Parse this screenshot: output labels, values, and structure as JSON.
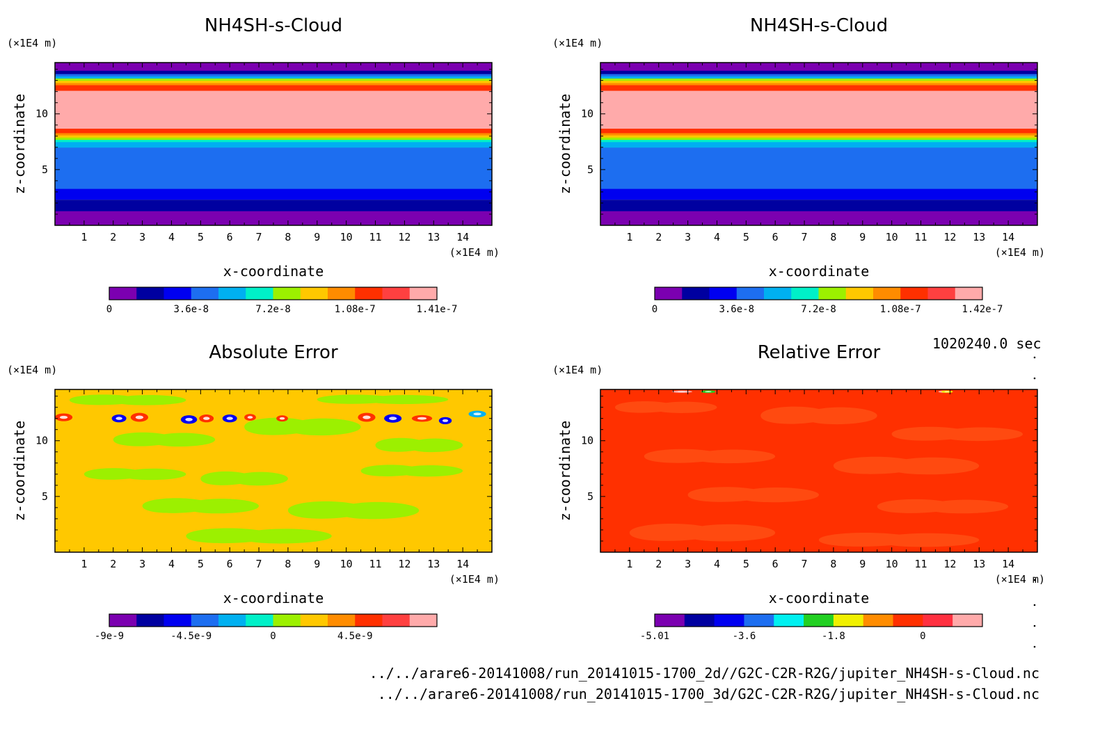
{
  "time_label": "1020240.0 sec",
  "footer": {
    "line1": "../../arare6-20141008/run_20141015-1700_2d//G2C-C2R-R2G/jupiter_NH4SH-s-Cloud.nc",
    "line2": "../../arare6-20141008/run_20141015-1700_3d/G2C-C2R-R2G/jupiter_NH4SH-s-Cloud.nc"
  },
  "chart_data": [
    {
      "type": "heatmap",
      "title": "NH4SH-s-Cloud",
      "xlabel": "x-coordinate",
      "ylabel": "z-coordinate",
      "x_unit": "(×1E4 m)",
      "y_unit": "(×1E4 m)",
      "xlim": [
        0,
        15
      ],
      "ylim": [
        0,
        14.6
      ],
      "x_ticks": [
        1,
        2,
        3,
        4,
        5,
        6,
        7,
        8,
        9,
        10,
        11,
        12,
        13,
        14
      ],
      "y_ticks": [
        5,
        10
      ],
      "colorbar": {
        "ticks": [
          "0",
          "3.6e-8",
          "7.2e-8",
          "1.08e-7",
          "1.41e-7"
        ],
        "colors": [
          "#7b00b0",
          "#0000a0",
          "#0000f0",
          "#1d6ef0",
          "#00b0f0",
          "#00f0c8",
          "#9cf000",
          "#ffc800",
          "#ff8c00",
          "#ff3000",
          "#ff4040",
          "#ffaaaa"
        ]
      },
      "layers": [
        {
          "z0": 0.0,
          "z1": 1.3,
          "color": "#7b00b0"
        },
        {
          "z0": 1.3,
          "z1": 2.3,
          "color": "#0000a0"
        },
        {
          "z0": 2.3,
          "z1": 3.3,
          "color": "#0000f0",
          "bulge": 0.8
        },
        {
          "z0": 3.3,
          "z1": 7.0,
          "color": "#1d6ef0"
        },
        {
          "z0": 7.0,
          "z1": 7.5,
          "color": "#00b0f0"
        },
        {
          "z0": 7.5,
          "z1": 7.7,
          "color": "#00f0c8"
        },
        {
          "z0": 7.7,
          "z1": 7.9,
          "color": "#9cf000"
        },
        {
          "z0": 7.9,
          "z1": 8.1,
          "color": "#ffc800"
        },
        {
          "z0": 8.1,
          "z1": 8.3,
          "color": "#ff8c00"
        },
        {
          "z0": 8.3,
          "z1": 8.7,
          "color": "#ff3000"
        },
        {
          "z0": 8.7,
          "z1": 12.1,
          "color": "#ffaaaa"
        },
        {
          "z0": 12.1,
          "z1": 12.6,
          "color": "#ff3000"
        },
        {
          "z0": 12.6,
          "z1": 12.8,
          "color": "#ff8c00"
        },
        {
          "z0": 12.8,
          "z1": 13.0,
          "color": "#ffc800"
        },
        {
          "z0": 13.0,
          "z1": 13.2,
          "color": "#9cf000"
        },
        {
          "z0": 13.2,
          "z1": 13.4,
          "color": "#00b0f0"
        },
        {
          "z0": 13.4,
          "z1": 13.6,
          "color": "#1d6ef0"
        },
        {
          "z0": 13.6,
          "z1": 13.9,
          "color": "#0000a0"
        },
        {
          "z0": 13.9,
          "z1": 14.6,
          "color": "#7b00b0"
        }
      ]
    },
    {
      "type": "heatmap",
      "title": "NH4SH-s-Cloud",
      "xlabel": "x-coordinate",
      "ylabel": "z-coordinate",
      "x_unit": "(×1E4 m)",
      "y_unit": "(×1E4 m)",
      "xlim": [
        0,
        15
      ],
      "ylim": [
        0,
        14.6
      ],
      "x_ticks": [
        1,
        2,
        3,
        4,
        5,
        6,
        7,
        8,
        9,
        10,
        11,
        12,
        13,
        14
      ],
      "y_ticks": [
        5,
        10
      ],
      "colorbar": {
        "ticks": [
          "0",
          "3.6e-8",
          "7.2e-8",
          "1.08e-7",
          "1.42e-7"
        ],
        "colors": [
          "#7b00b0",
          "#0000a0",
          "#0000f0",
          "#1d6ef0",
          "#00b0f0",
          "#00f0c8",
          "#9cf000",
          "#ffc800",
          "#ff8c00",
          "#ff3000",
          "#ff4040",
          "#ffaaaa"
        ]
      },
      "layers": [
        {
          "z0": 0.0,
          "z1": 1.3,
          "color": "#7b00b0"
        },
        {
          "z0": 1.3,
          "z1": 2.3,
          "color": "#0000a0"
        },
        {
          "z0": 2.3,
          "z1": 3.3,
          "color": "#0000f0",
          "bulge": 0.8
        },
        {
          "z0": 3.3,
          "z1": 7.0,
          "color": "#1d6ef0"
        },
        {
          "z0": 7.0,
          "z1": 7.5,
          "color": "#00b0f0"
        },
        {
          "z0": 7.5,
          "z1": 7.7,
          "color": "#00f0c8"
        },
        {
          "z0": 7.7,
          "z1": 7.9,
          "color": "#9cf000"
        },
        {
          "z0": 7.9,
          "z1": 8.1,
          "color": "#ffc800"
        },
        {
          "z0": 8.1,
          "z1": 8.3,
          "color": "#ff8c00"
        },
        {
          "z0": 8.3,
          "z1": 8.7,
          "color": "#ff3000"
        },
        {
          "z0": 8.7,
          "z1": 12.1,
          "color": "#ffaaaa"
        },
        {
          "z0": 12.1,
          "z1": 12.6,
          "color": "#ff3000"
        },
        {
          "z0": 12.6,
          "z1": 12.8,
          "color": "#ff8c00"
        },
        {
          "z0": 12.8,
          "z1": 13.0,
          "color": "#ffc800"
        },
        {
          "z0": 13.0,
          "z1": 13.2,
          "color": "#9cf000"
        },
        {
          "z0": 13.2,
          "z1": 13.4,
          "color": "#00b0f0"
        },
        {
          "z0": 13.4,
          "z1": 13.6,
          "color": "#1d6ef0"
        },
        {
          "z0": 13.6,
          "z1": 13.9,
          "color": "#0000a0"
        },
        {
          "z0": 13.9,
          "z1": 14.6,
          "color": "#7b00b0"
        }
      ]
    },
    {
      "type": "heatmap",
      "title": "Absolute Error",
      "xlabel": "x-coordinate",
      "ylabel": "z-coordinate",
      "x_unit": "(×1E4 m)",
      "y_unit": "(×1E4 m)",
      "xlim": [
        0,
        15
      ],
      "ylim": [
        0,
        14.6
      ],
      "x_ticks": [
        1,
        2,
        3,
        4,
        5,
        6,
        7,
        8,
        9,
        10,
        11,
        12,
        13,
        14
      ],
      "y_ticks": [
        5,
        10
      ],
      "colorbar": {
        "ticks": [
          "-9e-9",
          "-4.5e-9",
          "0",
          "4.5e-9"
        ],
        "colors": [
          "#7b00b0",
          "#0000a0",
          "#0000f0",
          "#1d6ef0",
          "#00b0f0",
          "#00f0c8",
          "#9cf000",
          "#ffc800",
          "#ff8c00",
          "#ff3000",
          "#ff4040",
          "#ffaaaa"
        ]
      },
      "background": "#ffc800",
      "patches": [
        {
          "x": 2.0,
          "z": 9.5,
          "w": 3.5,
          "h": 1.2,
          "color": "#9cf000"
        },
        {
          "x": 6.5,
          "z": 10.5,
          "w": 4.0,
          "h": 1.5,
          "color": "#9cf000"
        },
        {
          "x": 11.0,
          "z": 9.0,
          "w": 3.0,
          "h": 1.2,
          "color": "#9cf000"
        },
        {
          "x": 1.0,
          "z": 6.5,
          "w": 3.5,
          "h": 1.0,
          "color": "#9cf000"
        },
        {
          "x": 5.0,
          "z": 6.0,
          "w": 3.0,
          "h": 1.2,
          "color": "#9cf000"
        },
        {
          "x": 10.5,
          "z": 6.8,
          "w": 3.5,
          "h": 1.0,
          "color": "#9cf000"
        },
        {
          "x": 3.0,
          "z": 3.5,
          "w": 4.0,
          "h": 1.3,
          "color": "#9cf000"
        },
        {
          "x": 8.0,
          "z": 3.0,
          "w": 4.5,
          "h": 1.5,
          "color": "#9cf000"
        },
        {
          "x": 4.5,
          "z": 0.8,
          "w": 5.0,
          "h": 1.3,
          "color": "#9cf000"
        },
        {
          "x": 0.5,
          "z": 13.2,
          "w": 4.0,
          "h": 0.9,
          "color": "#9cf000"
        },
        {
          "x": 9.0,
          "z": 13.3,
          "w": 4.5,
          "h": 0.8,
          "color": "#9cf000"
        }
      ],
      "blobs": [
        {
          "x": 0.3,
          "z": 12.1,
          "rx": 0.3,
          "rz": 0.35,
          "color": "#ff3000"
        },
        {
          "x": 2.2,
          "z": 12.0,
          "rx": 0.25,
          "rz": 0.35,
          "color": "#0000f0"
        },
        {
          "x": 2.9,
          "z": 12.1,
          "rx": 0.3,
          "rz": 0.4,
          "color": "#ff3000"
        },
        {
          "x": 4.6,
          "z": 11.9,
          "rx": 0.28,
          "rz": 0.38,
          "color": "#0000f0"
        },
        {
          "x": 5.2,
          "z": 12.0,
          "rx": 0.25,
          "rz": 0.35,
          "color": "#ff3000"
        },
        {
          "x": 6.0,
          "z": 12.0,
          "rx": 0.25,
          "rz": 0.35,
          "color": "#0000f0"
        },
        {
          "x": 6.7,
          "z": 12.1,
          "rx": 0.2,
          "rz": 0.3,
          "color": "#ff3000"
        },
        {
          "x": 7.8,
          "z": 12.0,
          "rx": 0.2,
          "rz": 0.28,
          "color": "#ff3000"
        },
        {
          "x": 10.7,
          "z": 12.1,
          "rx": 0.3,
          "rz": 0.4,
          "color": "#ff3000"
        },
        {
          "x": 11.6,
          "z": 12.0,
          "rx": 0.3,
          "rz": 0.38,
          "color": "#0000f0"
        },
        {
          "x": 12.6,
          "z": 12.0,
          "rx": 0.35,
          "rz": 0.3,
          "color": "#ff3000"
        },
        {
          "x": 13.4,
          "z": 11.8,
          "rx": 0.22,
          "rz": 0.32,
          "color": "#0000f0"
        },
        {
          "x": 14.5,
          "z": 12.4,
          "rx": 0.3,
          "rz": 0.3,
          "color": "#00b0f0"
        }
      ]
    },
    {
      "type": "heatmap",
      "title": "Relative Error",
      "xlabel": "x-coordinate",
      "ylabel": "z-coordinate",
      "x_unit": "(×1E4 m)",
      "y_unit": "(×1E4 m)",
      "xlim": [
        0,
        15
      ],
      "ylim": [
        0,
        14.6
      ],
      "x_ticks": [
        1,
        2,
        3,
        4,
        5,
        6,
        7,
        8,
        9,
        10,
        11,
        12,
        13,
        14
      ],
      "y_ticks": [
        5,
        10
      ],
      "colorbar": {
        "ticks": [
          "-5.01",
          "-3.6",
          "-1.8",
          "0"
        ],
        "colors": [
          "#7b00b0",
          "#0000a0",
          "#0000f0",
          "#1d6ef0",
          "#00f0f0",
          "#22d022",
          "#f0f000",
          "#ff8c00",
          "#ff3000",
          "#ff3040",
          "#ffaaaa"
        ]
      },
      "background": "#ff3000",
      "patches": [
        {
          "x": 0.5,
          "z": 12.5,
          "w": 3.5,
          "h": 1.0,
          "color": "#ff4a10"
        },
        {
          "x": 5.5,
          "z": 11.5,
          "w": 4.0,
          "h": 1.5,
          "color": "#ff4a10"
        },
        {
          "x": 10.0,
          "z": 10.0,
          "w": 4.5,
          "h": 1.2,
          "color": "#ff4a10"
        },
        {
          "x": 1.5,
          "z": 8.0,
          "w": 4.5,
          "h": 1.2,
          "color": "#ff4a10"
        },
        {
          "x": 8.0,
          "z": 7.0,
          "w": 5.0,
          "h": 1.5,
          "color": "#ff4a10"
        },
        {
          "x": 3.0,
          "z": 4.5,
          "w": 4.5,
          "h": 1.3,
          "color": "#ff4a10"
        },
        {
          "x": 9.5,
          "z": 3.5,
          "w": 4.5,
          "h": 1.2,
          "color": "#ff4a10"
        },
        {
          "x": 1.0,
          "z": 1.0,
          "w": 5.0,
          "h": 1.5,
          "color": "#ff4a10"
        },
        {
          "x": 7.5,
          "z": 0.5,
          "w": 5.5,
          "h": 1.2,
          "color": "#ff4a10"
        }
      ],
      "blobs": [
        {
          "x": 2.8,
          "z": 14.4,
          "rx": 0.35,
          "rz": 0.1,
          "color": "#ffaaaa"
        },
        {
          "x": 3.7,
          "z": 14.4,
          "rx": 0.25,
          "rz": 0.12,
          "color": "#22d022"
        },
        {
          "x": 11.8,
          "z": 14.4,
          "rx": 0.2,
          "rz": 0.1,
          "color": "#ffaaaa"
        },
        {
          "x": 11.9,
          "z": 14.4,
          "rx": 0.2,
          "rz": 0.1,
          "color": "#f0f000"
        }
      ]
    }
  ]
}
